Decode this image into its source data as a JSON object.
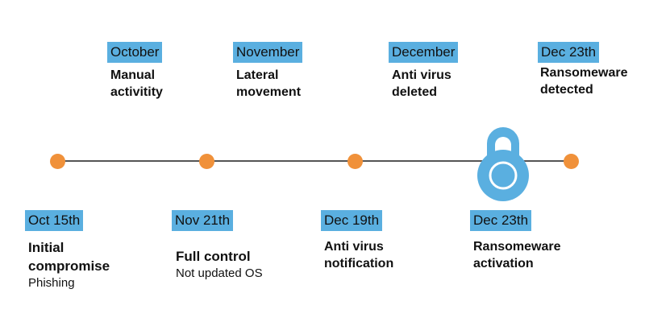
{
  "colors": {
    "tag": "#5aafe0",
    "dot": "#f0913a",
    "lock": "#5aafe0",
    "line": "#555555"
  },
  "top_events": [
    {
      "date": "October",
      "title_1": "Manual",
      "title_2": "activitity"
    },
    {
      "date": "November",
      "title_1": "Lateral",
      "title_2": "movement"
    },
    {
      "date": "December",
      "title_1": "Anti virus",
      "title_2": "deleted"
    },
    {
      "date": "Dec 23th",
      "title_1": "Ransomeware",
      "title_2": "detected"
    }
  ],
  "bottom_events": [
    {
      "date": "Oct 15th",
      "title_1": "Initial",
      "title_2": "compromise",
      "detail": "Phishing"
    },
    {
      "date": "Nov 21th",
      "title_1": "Full control",
      "detail": "Not updated OS"
    },
    {
      "date": "Dec 19th",
      "title_1": "Anti virus",
      "title_2": "notification"
    },
    {
      "date": "Dec 23th",
      "title_1": "Ransomeware",
      "title_2": "activation"
    }
  ],
  "lock_icon": "padlock-icon"
}
